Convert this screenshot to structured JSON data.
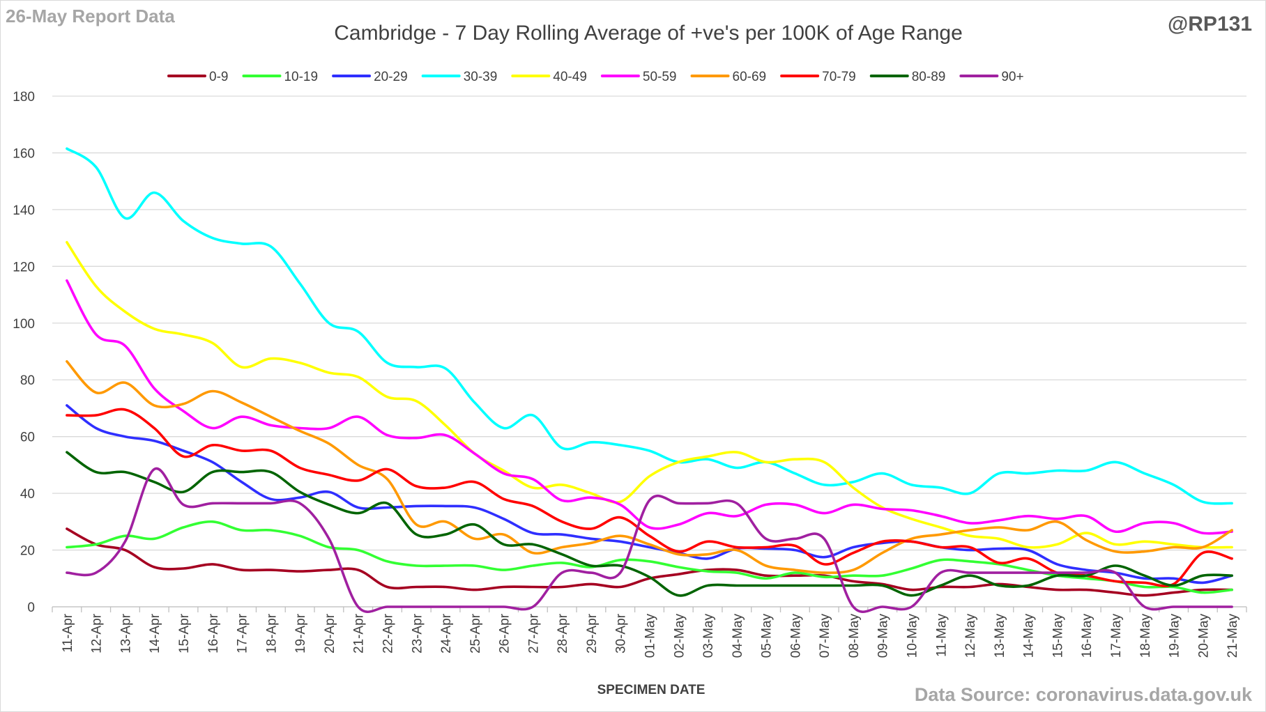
{
  "header": {
    "report_date": "26-May Report Data",
    "handle": "@RP131"
  },
  "footer": {
    "source": "Data Source: coronavirus.data.gov.uk"
  },
  "chart_data": {
    "type": "line",
    "title": "Cambridge - 7 Day Rolling Average of +ve's per 100K of Age Range",
    "xlabel": "SPECIMEN DATE",
    "ylabel": "",
    "ylim": [
      0,
      180
    ],
    "yticks": [
      0,
      20,
      40,
      60,
      80,
      100,
      120,
      140,
      160,
      180
    ],
    "grid": true,
    "legend_position": "top",
    "categories": [
      "11-Apr",
      "12-Apr",
      "13-Apr",
      "14-Apr",
      "15-Apr",
      "16-Apr",
      "17-Apr",
      "18-Apr",
      "19-Apr",
      "20-Apr",
      "21-Apr",
      "22-Apr",
      "23-Apr",
      "24-Apr",
      "25-Apr",
      "26-Apr",
      "27-Apr",
      "28-Apr",
      "29-Apr",
      "30-Apr",
      "01-May",
      "02-May",
      "03-May",
      "04-May",
      "05-May",
      "06-May",
      "07-May",
      "08-May",
      "09-May",
      "10-May",
      "11-May",
      "12-May",
      "13-May",
      "14-May",
      "15-May",
      "16-May",
      "17-May",
      "18-May",
      "19-May",
      "20-May",
      "21-May"
    ],
    "series": [
      {
        "name": "0-9",
        "color": "#a50021",
        "values": [
          27.5,
          22,
          20,
          14,
          13.5,
          15,
          13,
          13,
          12.5,
          13,
          13,
          7,
          7,
          7,
          6,
          7,
          7,
          7,
          8,
          7,
          10,
          11.5,
          13,
          13,
          11,
          11,
          11,
          9,
          8,
          6,
          7,
          7,
          8,
          7,
          6,
          6,
          5,
          4,
          5,
          6,
          6
        ]
      },
      {
        "name": "10-19",
        "color": "#33ff33",
        "values": [
          21,
          22,
          25,
          24,
          28,
          30,
          27,
          27,
          25,
          21,
          20,
          16,
          14.5,
          14.5,
          14.5,
          13,
          14.5,
          15.5,
          14,
          16.5,
          16,
          14,
          12.5,
          12,
          10,
          12,
          10.5,
          11,
          11,
          13.5,
          16.5,
          16,
          15,
          13,
          11,
          10,
          9,
          7,
          7,
          5,
          6
        ]
      },
      {
        "name": "20-29",
        "color": "#2f2fff",
        "values": [
          71,
          63,
          60,
          58.5,
          55,
          51,
          44,
          38,
          38.5,
          40.5,
          35,
          35,
          35.5,
          35.5,
          35,
          31,
          26,
          25.5,
          24,
          23,
          21,
          19,
          17,
          20.5,
          20.5,
          20,
          17.5,
          21,
          22.5,
          23,
          21,
          20,
          20.5,
          20,
          15,
          13,
          12,
          10,
          10,
          8.5,
          11
        ]
      },
      {
        "name": "30-39",
        "color": "#00ffff",
        "values": [
          161.5,
          155,
          137,
          146,
          136,
          130,
          128,
          127,
          114,
          100,
          97,
          86,
          84.5,
          84,
          72,
          63,
          67.5,
          56,
          58,
          57,
          55,
          51,
          52,
          49,
          51,
          47,
          43,
          44,
          47,
          43,
          42,
          40,
          47,
          47,
          48,
          48,
          51,
          47,
          43,
          37,
          36.5
        ]
      },
      {
        "name": "40-49",
        "color": "#ffff00",
        "values": [
          128.5,
          113,
          104,
          98,
          96,
          93,
          84.5,
          87.5,
          86,
          82.5,
          81,
          74,
          72.5,
          64,
          54,
          48,
          42,
          43,
          40,
          37,
          46,
          51,
          53,
          54.5,
          51,
          52,
          51,
          42,
          35,
          31,
          28,
          25,
          24,
          21,
          22,
          26,
          22,
          23,
          22,
          21,
          21
        ]
      },
      {
        "name": "50-59",
        "color": "#ff00ff",
        "values": [
          115,
          96,
          92,
          77,
          69,
          63,
          67,
          64,
          63,
          63,
          67,
          60.5,
          59.5,
          60.5,
          54,
          47,
          45,
          37.5,
          38.5,
          36,
          28,
          29,
          33,
          32,
          36,
          36,
          33,
          36,
          34.5,
          34,
          32,
          29.5,
          30.5,
          32,
          31,
          32,
          26.5,
          29.5,
          29.5,
          26,
          26.5
        ]
      },
      {
        "name": "60-69",
        "color": "#ff9900",
        "values": [
          86.5,
          75.5,
          79,
          71,
          71.5,
          76,
          72,
          67,
          62,
          57.5,
          50,
          45,
          29,
          30,
          24,
          25.5,
          19,
          21,
          22.5,
          25,
          22,
          18.5,
          18.5,
          20,
          14.5,
          13,
          12,
          13,
          19,
          24,
          25.5,
          27,
          28,
          27,
          30,
          23.5,
          19.5,
          19.5,
          21,
          21,
          27
        ]
      },
      {
        "name": "70-79",
        "color": "#ff0000",
        "values": [
          67.5,
          67.5,
          69.5,
          63,
          53,
          57,
          55,
          55,
          49,
          46.5,
          44.5,
          48.5,
          42.5,
          42,
          44,
          38,
          35.5,
          30,
          27.5,
          31.5,
          25,
          19.5,
          23,
          21,
          21,
          21.5,
          15,
          19,
          23,
          23,
          21,
          21,
          15.5,
          17,
          12,
          11,
          9,
          8.5,
          8,
          19,
          17
        ]
      },
      {
        "name": "80-89",
        "color": "#006400",
        "values": [
          54.5,
          47.5,
          47.5,
          44,
          40.5,
          47.5,
          47.5,
          47.5,
          40.5,
          36,
          33,
          36.5,
          25.5,
          25.5,
          29,
          22,
          22,
          18.5,
          14.5,
          14.5,
          10.5,
          4,
          7.5,
          7.5,
          7.5,
          7.5,
          7.5,
          7.5,
          7.5,
          4,
          7.5,
          11,
          7.5,
          7.5,
          11,
          11,
          14.5,
          11,
          7.5,
          11,
          11
        ]
      },
      {
        "name": "90+",
        "color": "#a020a0",
        "values": [
          12,
          12,
          23,
          48.5,
          36,
          36.5,
          36.5,
          36.5,
          36.5,
          24,
          0,
          0,
          0,
          0,
          0,
          0,
          0,
          12,
          12,
          12,
          37.5,
          36.5,
          36.5,
          36.5,
          24,
          24,
          24,
          0,
          0,
          0,
          12,
          12,
          12,
          12,
          12,
          12,
          12,
          0,
          0,
          0,
          0
        ]
      }
    ]
  }
}
